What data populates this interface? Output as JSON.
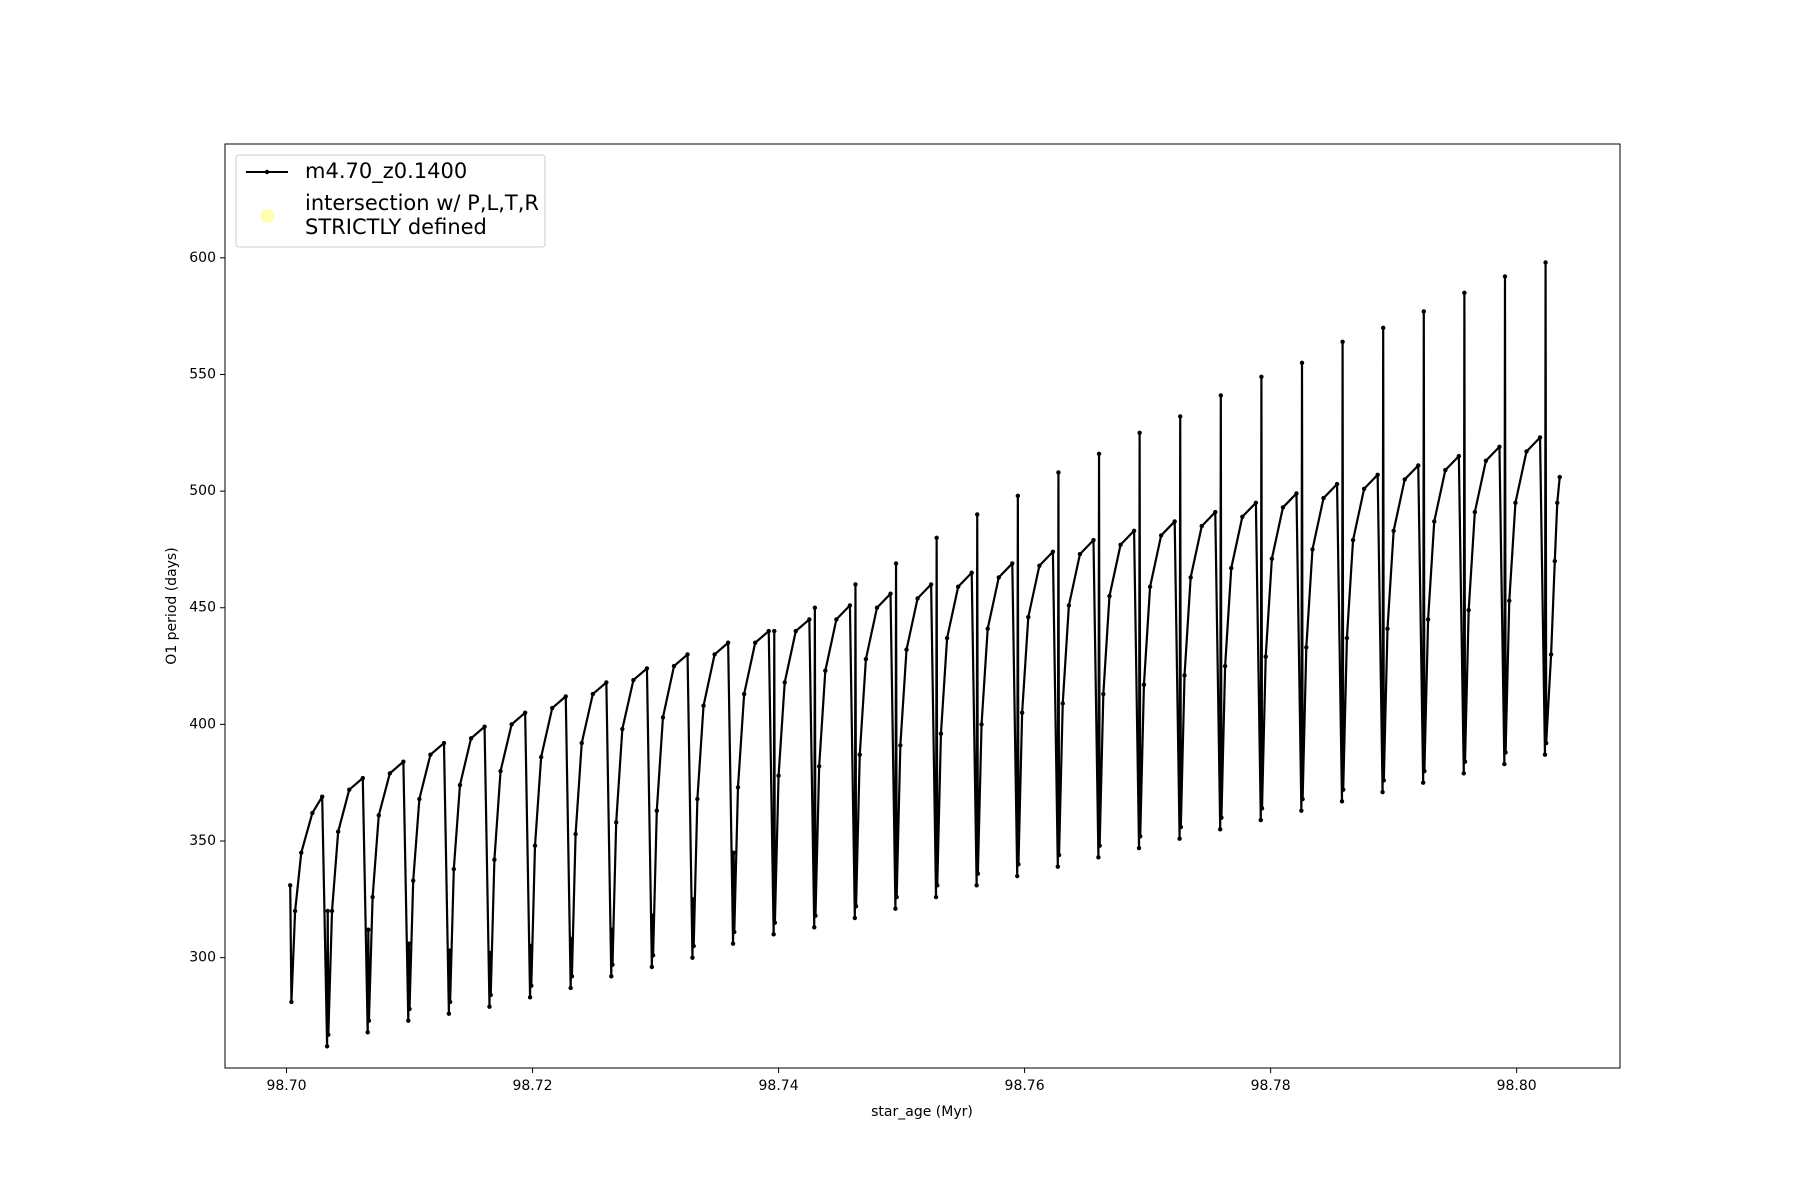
{
  "chart_data": {
    "type": "line",
    "xlabel": "star_age (Myr)",
    "ylabel": "O1 period (days)",
    "xlim": [
      98.695,
      98.8084
    ],
    "ylim": [
      252.7,
      648.8
    ],
    "xticks": [
      {
        "value": 98.7,
        "label": "98.70"
      },
      {
        "value": 98.72,
        "label": "98.72"
      },
      {
        "value": 98.74,
        "label": "98.74"
      },
      {
        "value": 98.76,
        "label": "98.76"
      },
      {
        "value": 98.78,
        "label": "98.78"
      },
      {
        "value": 98.8,
        "label": "98.80"
      }
    ],
    "yticks": [
      300,
      350,
      400,
      450,
      500,
      550,
      600
    ],
    "legend": "upper left",
    "x": [
      98.7003,
      98.7004,
      98.7007,
      98.7012,
      98.7021,
      98.7029,
      98.7033,
      98.70335,
      98.7034,
      98.7037,
      98.7042,
      98.7051,
      98.7062,
      98.7066,
      98.70665,
      98.7067,
      98.707,
      98.7075,
      98.7084,
      98.7095,
      98.7099,
      98.70995,
      98.71,
      98.7103,
      98.7108,
      98.7117,
      98.7128,
      98.7132,
      98.71325,
      98.7133,
      98.7136,
      98.7141,
      98.715,
      98.7161,
      98.7165,
      98.71655,
      98.7166,
      98.7169,
      98.7174,
      98.7183,
      98.7194,
      98.7198,
      98.71985,
      98.7199,
      98.7202,
      98.7207,
      98.7216,
      98.7227,
      98.7231,
      98.72315,
      98.7232,
      98.7235,
      98.724,
      98.7249,
      98.726,
      98.7264,
      98.72645,
      98.7265,
      98.7268,
      98.7273,
      98.7282,
      98.7293,
      98.7297,
      98.72975,
      98.7298,
      98.7301,
      98.7306,
      98.7315,
      98.7326,
      98.733,
      98.73305,
      98.7331,
      98.7334,
      98.7339,
      98.7348,
      98.7359,
      98.7363,
      98.73635,
      98.7364,
      98.7367,
      98.7372,
      98.7381,
      98.7392,
      98.7396,
      98.73965,
      98.7397,
      98.74,
      98.7405,
      98.7414,
      98.7425,
      98.7429,
      98.74295,
      98.743,
      98.7433,
      98.7438,
      98.7447,
      98.7458,
      98.7462,
      98.74625,
      98.7463,
      98.7466,
      98.7471,
      98.748,
      98.7491,
      98.7495,
      98.74955,
      98.7496,
      98.7499,
      98.7504,
      98.7513,
      98.7524,
      98.7528,
      98.75285,
      98.7529,
      98.7532,
      98.7537,
      98.7546,
      98.7557,
      98.7561,
      98.75615,
      98.7562,
      98.7565,
      98.757,
      98.7579,
      98.759,
      98.7594,
      98.75945,
      98.7595,
      98.7598,
      98.7603,
      98.7612,
      98.7623,
      98.7627,
      98.76275,
      98.7628,
      98.7631,
      98.7636,
      98.7645,
      98.7656,
      98.766,
      98.76605,
      98.7661,
      98.7664,
      98.7669,
      98.7678,
      98.7689,
      98.7693,
      98.76935,
      98.7694,
      98.7697,
      98.7702,
      98.7711,
      98.7722,
      98.7726,
      98.77265,
      98.7727,
      98.773,
      98.7735,
      98.7744,
      98.7755,
      98.7759,
      98.77595,
      98.776,
      98.7763,
      98.7768,
      98.7777,
      98.7788,
      98.7792,
      98.77925,
      98.7793,
      98.7796,
      98.7801,
      98.781,
      98.7821,
      98.7825,
      98.78255,
      98.7826,
      98.7829,
      98.7834,
      98.7843,
      98.7854,
      98.7858,
      98.78585,
      98.7859,
      98.7862,
      98.7867,
      98.7876,
      98.7887,
      98.7891,
      98.78915,
      98.7892,
      98.7895,
      98.79,
      98.7909,
      98.792,
      98.7924,
      98.79245,
      98.7925,
      98.7928,
      98.7933,
      98.7942,
      98.7953,
      98.7957,
      98.79575,
      98.7958,
      98.7961,
      98.7966,
      98.7975,
      98.7986,
      98.799,
      98.79905,
      98.7991,
      98.7994,
      98.7999,
      98.8008,
      98.8019,
      98.8023,
      98.80235,
      98.8024,
      98.8028,
      98.8031,
      98.8033,
      98.8035
    ],
    "series": [
      {
        "name": "m4.70_z0.1400",
        "color": "#000000",
        "values": [
          331,
          281,
          320,
          345,
          362,
          369,
          262,
          320,
          267,
          320,
          354,
          372,
          377,
          268,
          312,
          273,
          326,
          361,
          379,
          384,
          273,
          306,
          278,
          333,
          368,
          387,
          392,
          276,
          303,
          281,
          338,
          374,
          394,
          399,
          279,
          302,
          284,
          342,
          380,
          400,
          405,
          283,
          305,
          288,
          348,
          386,
          407,
          412,
          287,
          308,
          292,
          353,
          392,
          413,
          418,
          292,
          312,
          297,
          358,
          398,
          419,
          424,
          296,
          318,
          301,
          363,
          403,
          425,
          430,
          300,
          325,
          305,
          368,
          408,
          430,
          435,
          306,
          345,
          311,
          373,
          413,
          435,
          440,
          310,
          440,
          315,
          378,
          418,
          440,
          445,
          313,
          450,
          318,
          382,
          423,
          445,
          451,
          317,
          460,
          322,
          387,
          428,
          450,
          456,
          321,
          469,
          326,
          391,
          432,
          454,
          460,
          326,
          480,
          331,
          396,
          437,
          459,
          465,
          331,
          490,
          336,
          400,
          441,
          463,
          469,
          335,
          498,
          340,
          405,
          446,
          468,
          474,
          339,
          508,
          344,
          409,
          451,
          473,
          479,
          343,
          516,
          348,
          413,
          455,
          477,
          483,
          347,
          525,
          352,
          417,
          459,
          481,
          487,
          351,
          532,
          356,
          421,
          463,
          485,
          491,
          355,
          541,
          360,
          425,
          467,
          489,
          495,
          359,
          549,
          364,
          429,
          471,
          493,
          499,
          363,
          555,
          368,
          433,
          475,
          497,
          503,
          367,
          564,
          372,
          437,
          479,
          501,
          507,
          371,
          570,
          376,
          441,
          483,
          505,
          511,
          375,
          577,
          380,
          445,
          487,
          509,
          515,
          379,
          585,
          384,
          449,
          491,
          513,
          519,
          383,
          592,
          388,
          453,
          495,
          517,
          523,
          387,
          598,
          392,
          430,
          470,
          495,
          506
        ]
      }
    ],
    "legend_markers": [
      {
        "name": "intersection w/ P,L,T,R\nSTRICTLY defined",
        "color": "#ffffb3"
      }
    ]
  }
}
